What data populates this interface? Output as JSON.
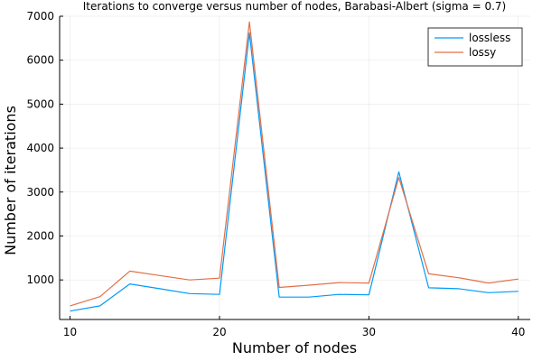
{
  "chart_data": {
    "type": "line",
    "title": "Iterations to converge versus number of nodes, Barabasi-Albert (sigma = 0.7)",
    "xlabel": "Number of nodes",
    "ylabel": "Number of iterations",
    "x": [
      10,
      12,
      14,
      16,
      18,
      20,
      22,
      24,
      26,
      28,
      30,
      32,
      34,
      36,
      38,
      40
    ],
    "series": [
      {
        "name": "lossless",
        "color": "#009AFA",
        "values": [
          290,
          410,
          910,
          800,
          690,
          670,
          6620,
          610,
          610,
          670,
          660,
          3460,
          820,
          800,
          710,
          740
        ]
      },
      {
        "name": "lossy",
        "color": "#E36F47",
        "values": [
          410,
          620,
          1200,
          1100,
          1000,
          1040,
          6870,
          830,
          880,
          940,
          930,
          3330,
          1140,
          1050,
          930,
          1020
        ]
      }
    ],
    "xlim": [
      9.3,
      40.8
    ],
    "ylim": [
      100,
      7000
    ],
    "xticks": [
      10,
      20,
      30,
      40
    ],
    "yticks": [
      1000,
      2000,
      3000,
      4000,
      5000,
      6000,
      7000
    ],
    "grid": true,
    "legend_position": "top-right"
  }
}
